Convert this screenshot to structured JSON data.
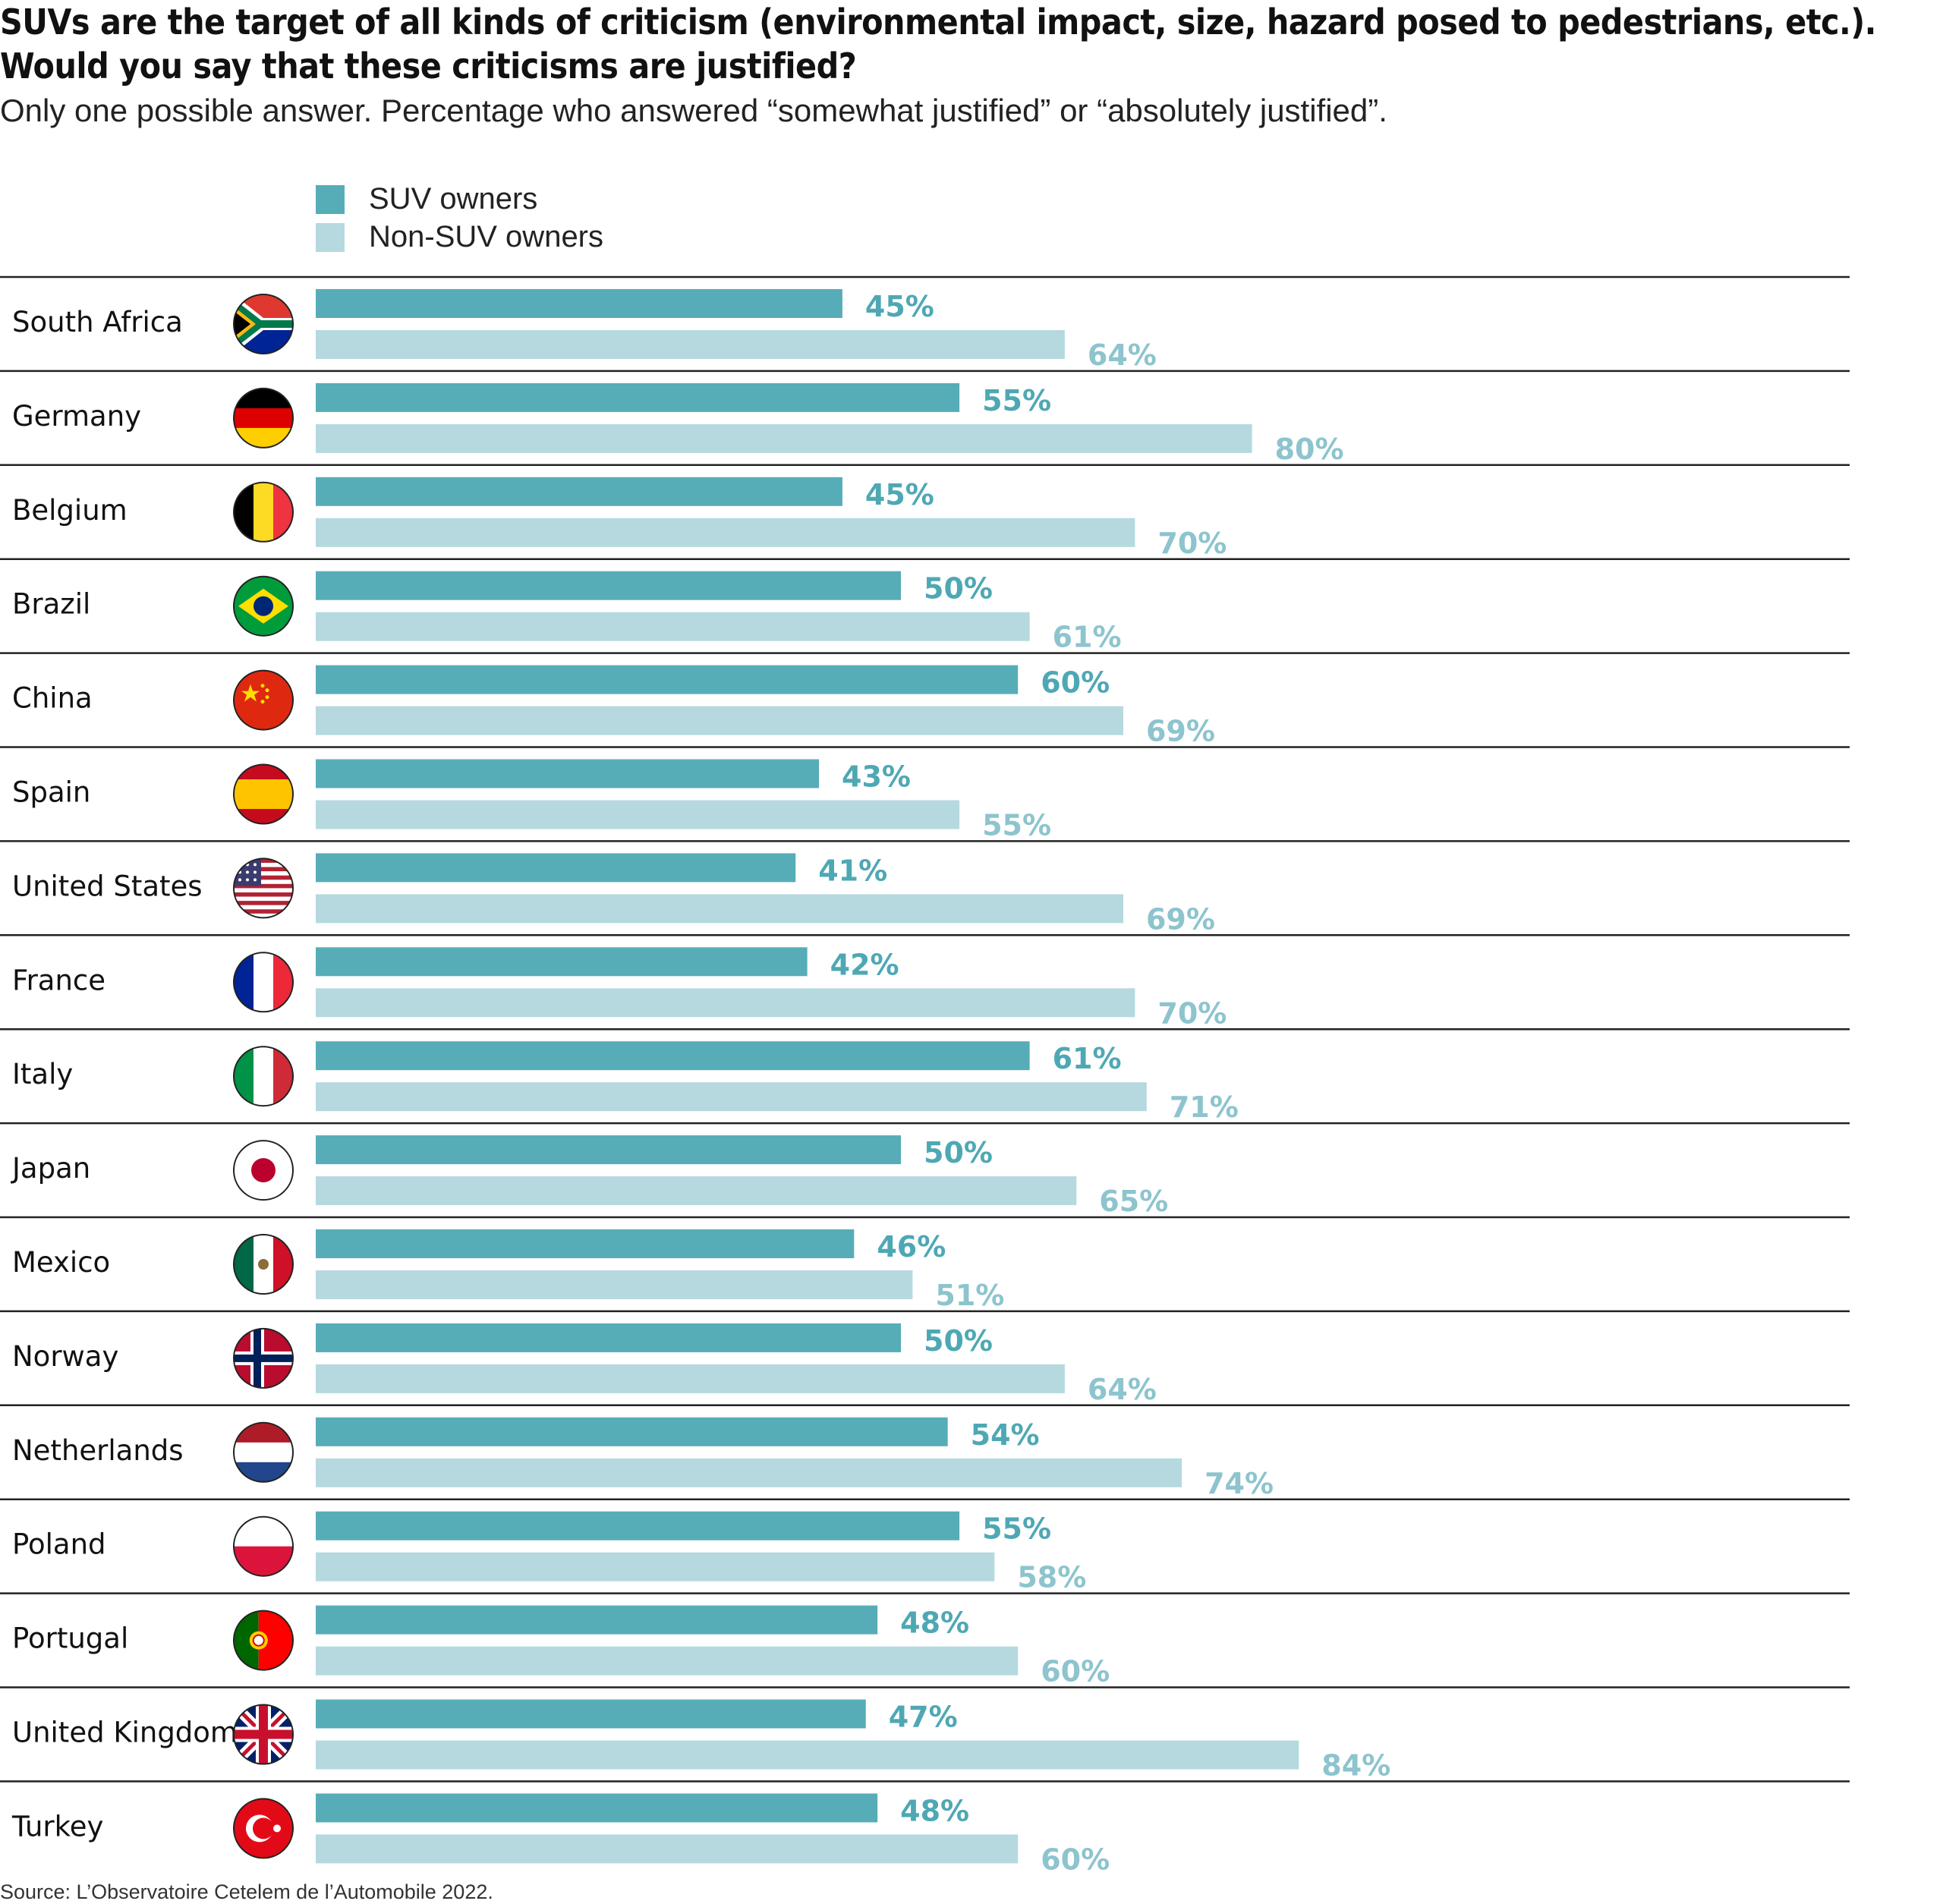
{
  "title_line1": "SUVs are the target of all kinds of criticism (environmental impact, size, hazard posed to pedestrians, etc.).",
  "title_line2": "Would you say that these criticisms are justified?",
  "subtitle": "Only one possible answer. Percentage who answered “somewhat justified” or “absolutely justified”.",
  "source": "Source: L’Observatoire Cetelem de l’Automobile 2022.",
  "colors": {
    "suv": "#56adb8",
    "non_suv": "#b5d9df",
    "suv_label": "#4ea8b4",
    "non_suv_label": "#8dc4ce",
    "rule": "#222222"
  },
  "chart_data": {
    "type": "bar",
    "orientation": "horizontal",
    "title": "SUVs are the target of all kinds of criticism (environmental impact, size, hazard posed to pedestrians, etc.). Would you say that these criticisms are justified?",
    "xlabel": "",
    "ylabel": "",
    "xlim": [
      0,
      100
    ],
    "unit": "%",
    "legend": {
      "placement": "top-left",
      "entries": [
        "SUV owners",
        "Non-SUV owners"
      ]
    },
    "categories": [
      "South Africa",
      "Germany",
      "Belgium",
      "Brazil",
      "China",
      "Spain",
      "United States",
      "France",
      "Italy",
      "Japan",
      "Mexico",
      "Norway",
      "Netherlands",
      "Poland",
      "Portugal",
      "United Kingdom",
      "Turkey"
    ],
    "flag_icons": [
      "za",
      "de",
      "be",
      "br",
      "cn",
      "es",
      "us",
      "fr",
      "it",
      "jp",
      "mx",
      "no",
      "nl",
      "pl",
      "pt",
      "gb",
      "tr"
    ],
    "series": [
      {
        "name": "SUV owners",
        "values": [
          45,
          55,
          45,
          50,
          60,
          43,
          41,
          42,
          61,
          50,
          46,
          50,
          54,
          55,
          48,
          47,
          48
        ]
      },
      {
        "name": "Non-SUV owners",
        "values": [
          64,
          80,
          70,
          61,
          69,
          55,
          69,
          70,
          71,
          65,
          51,
          64,
          74,
          58,
          60,
          84,
          60
        ]
      }
    ]
  }
}
